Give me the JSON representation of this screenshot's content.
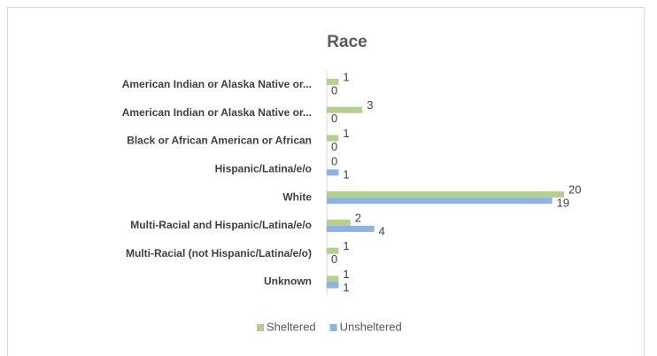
{
  "chart_data": {
    "type": "bar",
    "orientation": "horizontal",
    "title": "Race",
    "categories": [
      "American Indian or Alaska Native or...",
      "American Indian or Alaska Native or...",
      "Black or African American or African",
      "Hispanic/Latina/e/o",
      "White",
      "Multi-Racial  and Hispanic/Latina/e/o",
      "Multi-Racial (not Hispanic/Latina/e/o)",
      "Unknown"
    ],
    "series": [
      {
        "name": "Sheltered",
        "color": "#b5cf8f",
        "values": [
          1,
          3,
          1,
          0,
          20,
          2,
          1,
          1
        ]
      },
      {
        "name": "Unsheltered",
        "color": "#8db3e2",
        "values": [
          0,
          0,
          0,
          1,
          19,
          4,
          0,
          1
        ]
      }
    ],
    "legend": "bottom"
  }
}
